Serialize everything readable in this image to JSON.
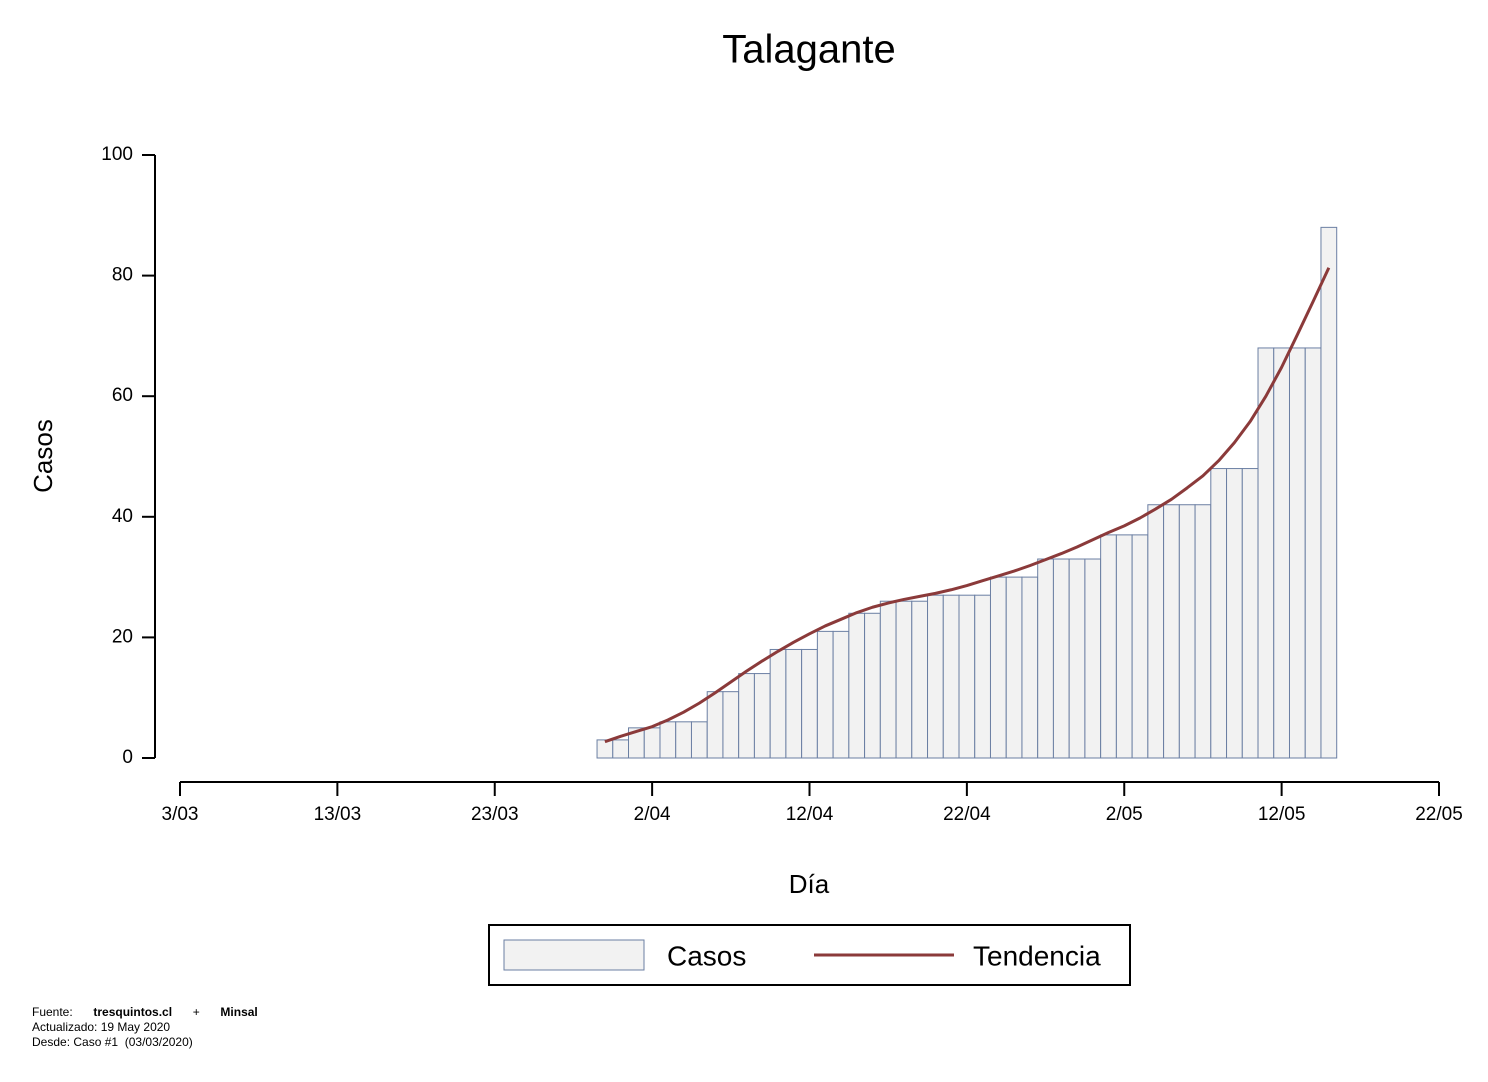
{
  "chart_data": {
    "type": "bar",
    "title": "Talagante",
    "x_label": "Día",
    "y_label": "Casos",
    "x": [
      "30/03",
      "31/03",
      "1/04",
      "2/04",
      "3/04",
      "4/04",
      "5/04",
      "6/04",
      "7/04",
      "8/04",
      "9/04",
      "10/04",
      "11/04",
      "12/04",
      "13/04",
      "14/04",
      "15/04",
      "16/04",
      "17/04",
      "18/04",
      "19/04",
      "20/04",
      "21/04",
      "22/04",
      "23/04",
      "24/04",
      "25/04",
      "26/04",
      "27/04",
      "28/04",
      "29/04",
      "30/04",
      "1/05",
      "2/05",
      "3/05",
      "4/05",
      "5/05",
      "6/05",
      "7/05",
      "8/05",
      "9/05",
      "10/05",
      "11/05",
      "12/05",
      "13/05",
      "14/05",
      "15/05"
    ],
    "series": [
      {
        "name": "Casos",
        "color": "#f2f2f2",
        "edge_color": "#6b7fa3",
        "values": [
          3,
          3,
          5,
          5,
          6,
          6,
          6,
          11,
          11,
          14,
          14,
          18,
          18,
          18,
          21,
          21,
          24,
          24,
          26,
          26,
          26,
          27,
          27,
          27,
          27,
          30,
          30,
          30,
          33,
          33,
          33,
          33,
          37,
          37,
          37,
          42,
          42,
          42,
          42,
          48,
          48,
          48,
          68,
          68,
          68,
          68,
          88
        ]
      },
      {
        "name": "Tendencia",
        "color": "#8b3a3a",
        "type": "line",
        "values": [
          2.7,
          3.6,
          4.4,
          5.2,
          6.3,
          7.6,
          9.1,
          10.8,
          12.6,
          14.4,
          16.1,
          17.7,
          19.2,
          20.6,
          21.9,
          23.0,
          24.1,
          25.0,
          25.7,
          26.3,
          26.8,
          27.3,
          27.9,
          28.6,
          29.4,
          30.2,
          31.0,
          31.9,
          32.9,
          33.9,
          35.0,
          36.2,
          37.4,
          38.5,
          39.8,
          41.3,
          42.9,
          44.8,
          46.8,
          49.3,
          52.3,
          55.8,
          60.0,
          64.8,
          70.2,
          75.7,
          81.3
        ]
      }
    ],
    "xlim": [
      "3/03",
      "22/05"
    ],
    "xticks": [
      "3/03",
      "13/03",
      "23/03",
      "2/04",
      "12/04",
      "22/04",
      "2/05",
      "12/05",
      "22/05"
    ],
    "ylim": [
      0,
      100
    ],
    "yticks": [
      0,
      20,
      40,
      60,
      80,
      100
    ],
    "legend": "bottom"
  },
  "footer": {
    "source_label": "Fuente:",
    "source_1": "tresquintos.cl",
    "plus": "+",
    "source_2": "Minsal",
    "updated": "Actualizado: 19 May 2020",
    "since": "Desde: Caso #1  (03/03/2020)"
  }
}
